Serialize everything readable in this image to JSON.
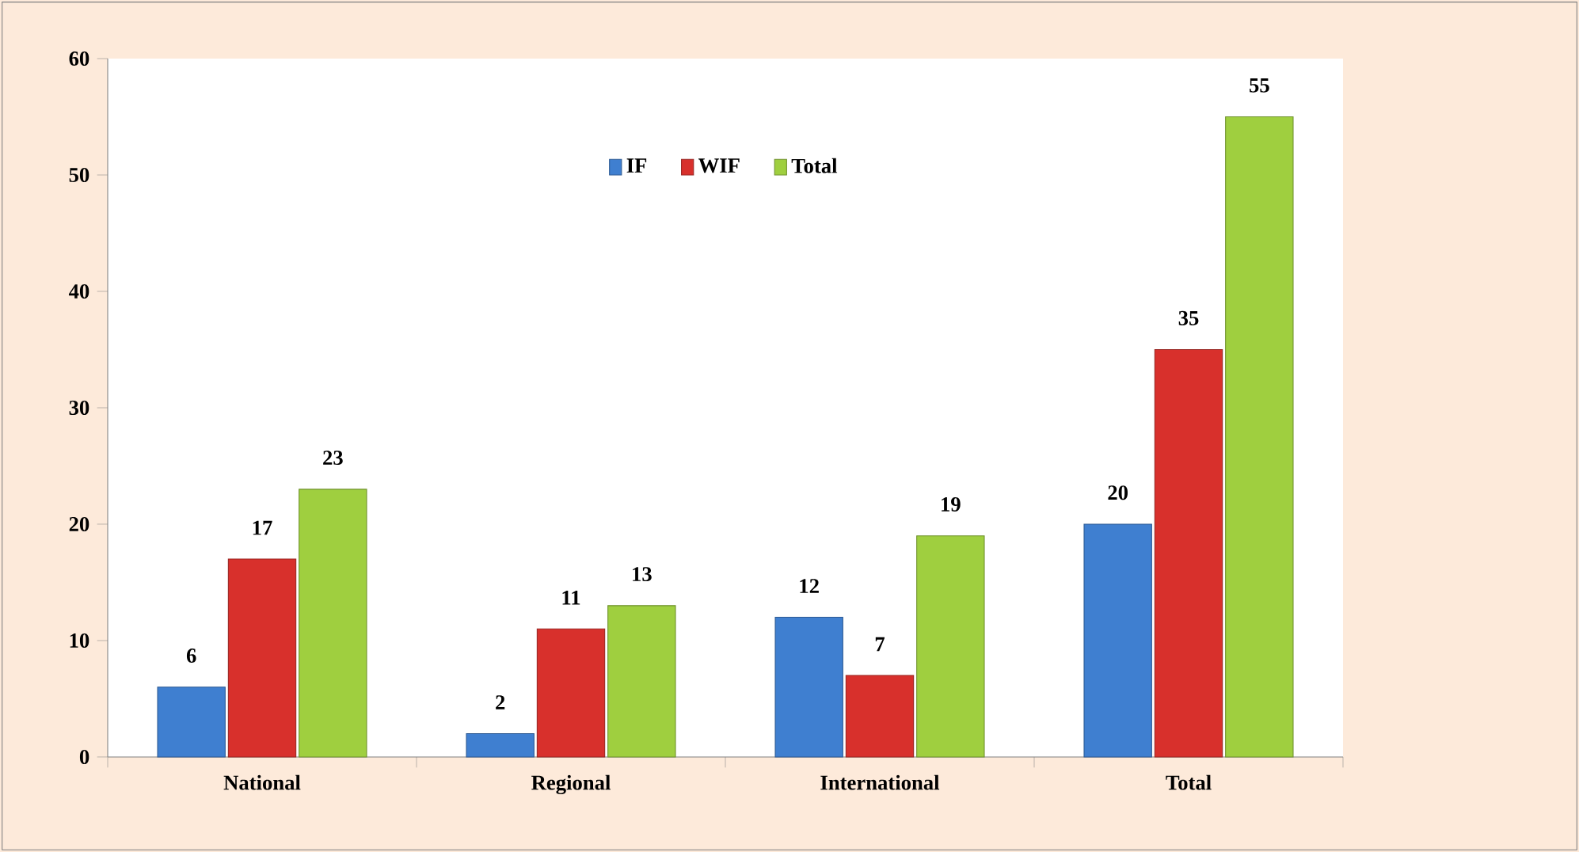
{
  "chart_data": {
    "type": "bar",
    "categories": [
      "National",
      "Regional",
      "International",
      "Total"
    ],
    "series": [
      {
        "name": "IF",
        "color": "#3f7fd0",
        "values": [
          6,
          2,
          12,
          20
        ]
      },
      {
        "name": "WIF",
        "color": "#d8302c",
        "values": [
          17,
          11,
          7,
          35
        ]
      },
      {
        "name": "Total",
        "color": "#9fcf3f",
        "values": [
          23,
          13,
          19,
          55
        ]
      }
    ],
    "ylim": [
      0,
      60
    ],
    "yticks": [
      0,
      10,
      20,
      30,
      40,
      50,
      60
    ],
    "data_labels": true,
    "legend": "top",
    "grid": false
  }
}
